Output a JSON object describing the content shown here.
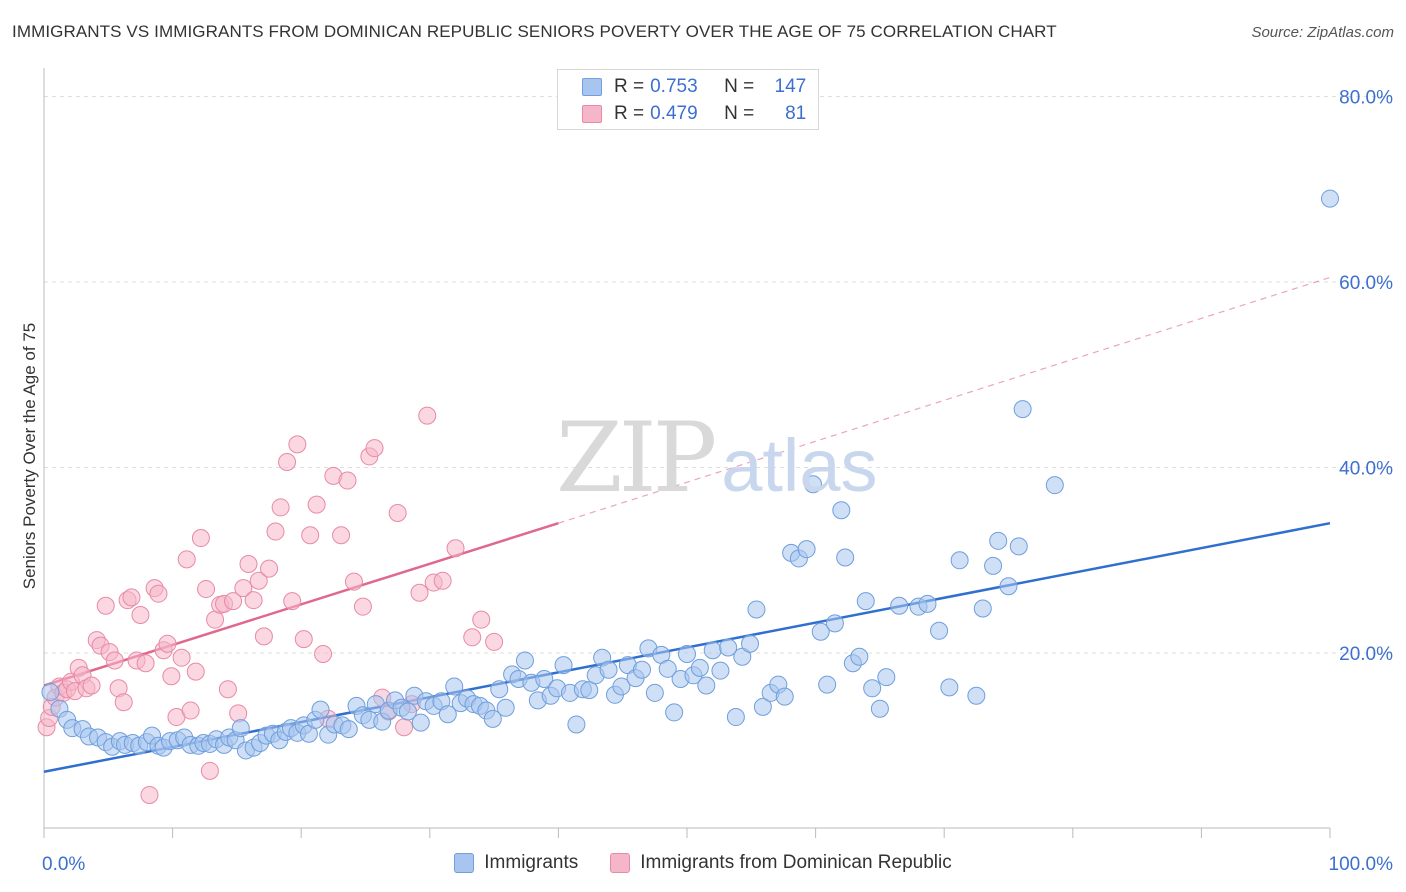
{
  "title": "IMMIGRANTS VS IMMIGRANTS FROM DOMINICAN REPUBLIC SENIORS POVERTY OVER THE AGE OF 75 CORRELATION CHART",
  "source": "Source: ZipAtlas.com",
  "watermark": {
    "zip": "ZIP",
    "atlas": "atlas"
  },
  "legend_top": {
    "rows": [
      {
        "r_label": "R = ",
        "r_value": "0.753",
        "n_label": "N = ",
        "n_value": "147",
        "color": "#a7c5ee"
      },
      {
        "r_label": "R = ",
        "r_value": "0.479",
        "n_label": "N = ",
        "n_value": "81",
        "color": "#f5b6c9"
      }
    ]
  },
  "legend_bottom": [
    "Immigrants",
    "Immigrants from Dominican Republic"
  ],
  "colors": {
    "blue_fill": "#a7c5ee",
    "blue_stroke": "#6f9fdc",
    "blue_line": "#2f6fcf",
    "pink_fill": "#f5b6c9",
    "pink_stroke": "#e88aa7",
    "pink_line": "#e0688e",
    "axis_text": "#3d6fcf",
    "grid": "#dddddd"
  },
  "chart_data": {
    "type": "scatter",
    "title": "IMMIGRANTS VS IMMIGRANTS FROM DOMINICAN REPUBLIC SENIORS POVERTY OVER THE AGE OF 75 CORRELATION CHART",
    "xlabel": "",
    "ylabel": "Seniors Poverty Over the Age of 75",
    "xlim": [
      0,
      100
    ],
    "ylim": [
      2,
      82
    ],
    "x_tick_labels": [
      "0.0%",
      "100.0%"
    ],
    "y_ticks": [
      20,
      40,
      60,
      80
    ],
    "y_tick_labels": [
      "20.0%",
      "40.0%",
      "60.0%",
      "80.0%"
    ],
    "grid": "horizontal dashed",
    "legend": "top-center and bottom",
    "series": [
      {
        "name": "Immigrants",
        "r": 0.753,
        "n": 147,
        "trend": {
          "x": [
            0,
            100
          ],
          "y": [
            7.2,
            34.0
          ]
        },
        "points": [
          [
            0.5,
            15.8
          ],
          [
            1.2,
            14.0
          ],
          [
            1.8,
            12.8
          ],
          [
            2.2,
            11.9
          ],
          [
            3.0,
            11.8
          ],
          [
            3.5,
            11.0
          ],
          [
            4.2,
            10.9
          ],
          [
            4.8,
            10.4
          ],
          [
            5.3,
            9.9
          ],
          [
            5.9,
            10.5
          ],
          [
            6.3,
            10.1
          ],
          [
            6.9,
            10.3
          ],
          [
            7.4,
            10.0
          ],
          [
            8.0,
            10.4
          ],
          [
            8.4,
            11.1
          ],
          [
            8.9,
            10.0
          ],
          [
            9.3,
            9.8
          ],
          [
            9.8,
            10.5
          ],
          [
            10.4,
            10.6
          ],
          [
            10.9,
            10.9
          ],
          [
            11.4,
            10.1
          ],
          [
            12.0,
            10.0
          ],
          [
            12.4,
            10.3
          ],
          [
            12.9,
            10.2
          ],
          [
            13.4,
            10.7
          ],
          [
            14.0,
            10.1
          ],
          [
            14.4,
            10.9
          ],
          [
            14.9,
            10.6
          ],
          [
            15.3,
            11.9
          ],
          [
            15.7,
            9.5
          ],
          [
            16.3,
            9.8
          ],
          [
            16.8,
            10.3
          ],
          [
            17.3,
            11.1
          ],
          [
            17.8,
            11.3
          ],
          [
            18.3,
            10.6
          ],
          [
            18.8,
            11.5
          ],
          [
            19.2,
            11.9
          ],
          [
            19.7,
            11.4
          ],
          [
            20.2,
            12.2
          ],
          [
            20.6,
            11.3
          ],
          [
            21.1,
            12.8
          ],
          [
            21.5,
            13.9
          ],
          [
            22.1,
            11.2
          ],
          [
            22.6,
            12.3
          ],
          [
            23.2,
            12.2
          ],
          [
            23.7,
            11.8
          ],
          [
            24.3,
            14.3
          ],
          [
            24.8,
            13.3
          ],
          [
            25.3,
            12.8
          ],
          [
            25.8,
            14.5
          ],
          [
            26.3,
            12.6
          ],
          [
            26.8,
            13.8
          ],
          [
            27.3,
            14.9
          ],
          [
            27.8,
            14.1
          ],
          [
            28.3,
            13.7
          ],
          [
            28.8,
            15.4
          ],
          [
            29.3,
            12.5
          ],
          [
            29.7,
            14.8
          ],
          [
            30.3,
            14.3
          ],
          [
            30.9,
            14.8
          ],
          [
            31.4,
            13.4
          ],
          [
            31.9,
            16.4
          ],
          [
            32.4,
            14.6
          ],
          [
            32.9,
            15.1
          ],
          [
            33.4,
            14.5
          ],
          [
            33.9,
            14.3
          ],
          [
            34.4,
            13.8
          ],
          [
            34.9,
            12.9
          ],
          [
            35.4,
            16.1
          ],
          [
            35.9,
            14.1
          ],
          [
            36.4,
            17.7
          ],
          [
            36.9,
            17.2
          ],
          [
            37.4,
            19.2
          ],
          [
            37.9,
            16.8
          ],
          [
            38.4,
            14.9
          ],
          [
            38.9,
            17.2
          ],
          [
            39.4,
            15.4
          ],
          [
            39.9,
            16.2
          ],
          [
            40.4,
            18.7
          ],
          [
            40.9,
            15.7
          ],
          [
            41.4,
            12.3
          ],
          [
            41.9,
            16.1
          ],
          [
            42.4,
            16.0
          ],
          [
            42.9,
            17.6
          ],
          [
            43.4,
            19.5
          ],
          [
            43.9,
            18.2
          ],
          [
            44.4,
            15.5
          ],
          [
            44.9,
            16.4
          ],
          [
            45.4,
            18.7
          ],
          [
            46.0,
            17.3
          ],
          [
            46.5,
            18.2
          ],
          [
            47.0,
            20.5
          ],
          [
            47.5,
            15.7
          ],
          [
            48.0,
            19.8
          ],
          [
            48.5,
            18.3
          ],
          [
            49.0,
            13.6
          ],
          [
            49.5,
            17.2
          ],
          [
            50.0,
            19.9
          ],
          [
            50.5,
            17.6
          ],
          [
            51.0,
            18.4
          ],
          [
            51.5,
            16.5
          ],
          [
            52.0,
            20.3
          ],
          [
            52.6,
            18.1
          ],
          [
            53.2,
            20.6
          ],
          [
            53.8,
            13.1
          ],
          [
            54.3,
            19.6
          ],
          [
            54.9,
            21.0
          ],
          [
            55.4,
            24.7
          ],
          [
            55.9,
            14.2
          ],
          [
            56.5,
            15.7
          ],
          [
            57.1,
            16.6
          ],
          [
            57.6,
            15.3
          ],
          [
            58.1,
            30.8
          ],
          [
            58.7,
            30.2
          ],
          [
            59.3,
            31.2
          ],
          [
            59.8,
            38.2
          ],
          [
            60.4,
            22.3
          ],
          [
            60.9,
            16.6
          ],
          [
            61.5,
            23.2
          ],
          [
            62.0,
            35.4
          ],
          [
            62.3,
            30.3
          ],
          [
            62.9,
            18.9
          ],
          [
            63.4,
            19.6
          ],
          [
            63.9,
            25.6
          ],
          [
            64.4,
            16.2
          ],
          [
            65.0,
            14.0
          ],
          [
            65.5,
            17.4
          ],
          [
            66.5,
            25.1
          ],
          [
            68.0,
            25.0
          ],
          [
            68.7,
            25.3
          ],
          [
            69.6,
            22.4
          ],
          [
            70.4,
            16.3
          ],
          [
            71.2,
            30.0
          ],
          [
            72.5,
            15.4
          ],
          [
            73.0,
            24.8
          ],
          [
            73.8,
            29.4
          ],
          [
            74.2,
            32.1
          ],
          [
            75.0,
            27.2
          ],
          [
            75.8,
            31.5
          ],
          [
            76.1,
            46.3
          ],
          [
            78.6,
            38.1
          ],
          [
            100.0,
            69.0
          ]
        ]
      },
      {
        "name": "Immigrants from Dominican Republic",
        "r": 0.479,
        "n": 81,
        "trend": {
          "x": [
            0,
            40
          ],
          "y": [
            16.5,
            34.0
          ]
        },
        "trend_extended": {
          "x": [
            40,
            100
          ],
          "y": [
            34.0,
            60.5
          ]
        },
        "points": [
          [
            0.2,
            12.0
          ],
          [
            0.4,
            13.0
          ],
          [
            0.6,
            14.2
          ],
          [
            0.9,
            15.2
          ],
          [
            1.2,
            16.4
          ],
          [
            1.5,
            15.7
          ],
          [
            1.8,
            16.1
          ],
          [
            2.1,
            16.9
          ],
          [
            2.4,
            15.9
          ],
          [
            2.7,
            18.4
          ],
          [
            3.0,
            17.6
          ],
          [
            3.3,
            16.2
          ],
          [
            3.7,
            16.5
          ],
          [
            4.1,
            21.4
          ],
          [
            4.4,
            20.8
          ],
          [
            4.8,
            25.1
          ],
          [
            5.1,
            20.1
          ],
          [
            5.5,
            19.2
          ],
          [
            5.8,
            16.2
          ],
          [
            6.2,
            14.7
          ],
          [
            6.5,
            25.7
          ],
          [
            6.8,
            26.0
          ],
          [
            7.2,
            19.2
          ],
          [
            7.5,
            24.1
          ],
          [
            7.9,
            18.9
          ],
          [
            8.2,
            4.7
          ],
          [
            8.6,
            27.0
          ],
          [
            8.9,
            26.4
          ],
          [
            9.3,
            20.3
          ],
          [
            9.6,
            21.0
          ],
          [
            9.9,
            17.5
          ],
          [
            10.3,
            13.1
          ],
          [
            10.7,
            19.5
          ],
          [
            11.1,
            30.1
          ],
          [
            11.4,
            13.8
          ],
          [
            11.8,
            18.0
          ],
          [
            12.2,
            32.4
          ],
          [
            12.6,
            26.9
          ],
          [
            12.9,
            7.3
          ],
          [
            13.3,
            23.6
          ],
          [
            13.7,
            25.2
          ],
          [
            14.0,
            25.3
          ],
          [
            14.3,
            16.1
          ],
          [
            14.7,
            25.6
          ],
          [
            15.1,
            13.5
          ],
          [
            15.5,
            27.0
          ],
          [
            15.9,
            29.6
          ],
          [
            16.3,
            25.7
          ],
          [
            16.7,
            27.8
          ],
          [
            17.1,
            21.8
          ],
          [
            17.5,
            29.1
          ],
          [
            18.0,
            33.1
          ],
          [
            18.4,
            35.7
          ],
          [
            18.9,
            40.6
          ],
          [
            19.3,
            25.6
          ],
          [
            19.7,
            42.5
          ],
          [
            20.2,
            21.5
          ],
          [
            20.7,
            32.7
          ],
          [
            21.2,
            36.0
          ],
          [
            21.7,
            19.9
          ],
          [
            22.1,
            12.9
          ],
          [
            22.5,
            39.1
          ],
          [
            23.1,
            32.7
          ],
          [
            23.6,
            38.6
          ],
          [
            24.1,
            27.7
          ],
          [
            24.8,
            25.0
          ],
          [
            25.3,
            41.2
          ],
          [
            25.7,
            42.1
          ],
          [
            26.3,
            15.2
          ],
          [
            26.8,
            13.7
          ],
          [
            27.5,
            35.1
          ],
          [
            28.0,
            12.0
          ],
          [
            28.6,
            14.5
          ],
          [
            29.2,
            26.5
          ],
          [
            29.8,
            45.6
          ],
          [
            30.3,
            27.6
          ],
          [
            31.0,
            27.8
          ],
          [
            32.0,
            31.3
          ],
          [
            33.3,
            21.7
          ],
          [
            34.0,
            23.6
          ],
          [
            35.0,
            21.2
          ]
        ]
      }
    ]
  }
}
